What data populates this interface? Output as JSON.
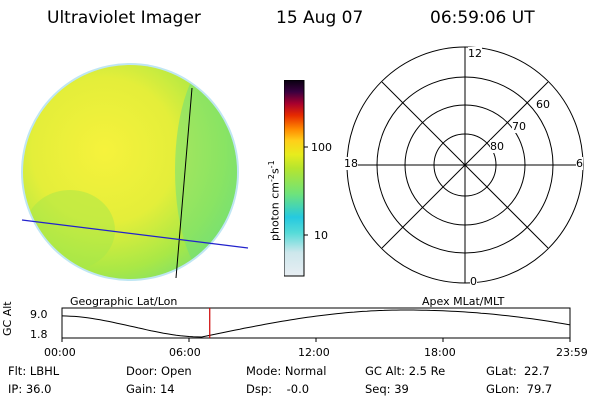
{
  "header": {
    "instrument": "Ultraviolet Imager",
    "date": "15 Aug 07",
    "time": "06:59:06 UT"
  },
  "colorbar": {
    "unit_label": "photon cm",
    "unit_exp1": "-2",
    "unit_s": "s",
    "unit_exp2": "-1",
    "ticks": [
      "100",
      "10"
    ],
    "stops": [
      "#e8eef3",
      "#cde7ec",
      "#56dbd8",
      "#25c9e0",
      "#6fe37a",
      "#b6e52e",
      "#e7ec1d",
      "#ffcf1a",
      "#ff8a00",
      "#e62a00",
      "#a8002e",
      "#3a0040",
      "#080010"
    ]
  },
  "globe": {
    "caption": "Geographic Lat/Lon",
    "colors": {
      "bright": "#f3f03a",
      "mid": "#b5ea3c",
      "dim": "#6fe06a",
      "edge": "#9ad3ee",
      "grid": "#000000",
      "track": "#2222cc"
    }
  },
  "polar": {
    "caption": "Apex MLat/MLT",
    "mlt_labels": [
      "12",
      "18",
      "6",
      "0"
    ],
    "lat_labels": [
      "60",
      "70",
      "80"
    ]
  },
  "orbit": {
    "ylabel": "GC Alt",
    "ymax": "9.0",
    "ymin": "1.8",
    "xticks": [
      "00:00",
      "06:00",
      "12:00",
      "18:00",
      "23:59"
    ],
    "current_time_hours": 6.98,
    "marker_color": "#cc0000"
  },
  "status": {
    "filter": "Flt: LBHL",
    "ip": "IP: 36.0",
    "door": "Door: Open",
    "gain": "Gain: 14",
    "mode": "Mode: Normal",
    "dsp": "Dsp:    -0.0",
    "gc_alt": "GC Alt: 2.5 Re",
    "seq": "Seq: 39",
    "glat": "GLat:  22.7",
    "glon": "GLon:  79.7"
  }
}
